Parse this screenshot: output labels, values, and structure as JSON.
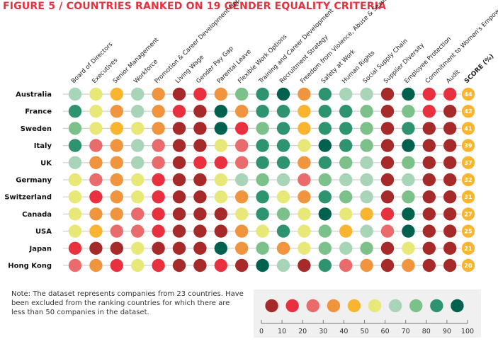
{
  "title": "FIGURE 5 / COUNTRIES RANKED ON 19 GENDER EQUALITY CRITERIA",
  "note": "Note: The dataset represents companies from 23 countries. Have been excluded from the ranking countries for which there are less than 50 companies in the dataset.",
  "colors": {
    "title": "#e8303f",
    "scale": [
      "#a62a2a",
      "#e8303f",
      "#ea6b6b",
      "#f0953d",
      "#f9b52f",
      "#e8e879",
      "#a8d4b7",
      "#7cc18a",
      "#2e936f",
      "#00614f"
    ]
  },
  "chart_data": {
    "type": "heatmap",
    "criteria": [
      "Board of Directors",
      "Executives",
      "Senior Management",
      "Workforce",
      "Promotion & Career Development Opportunities",
      "Living Wage",
      "Gender Pay Gap",
      "Parental Leave",
      "Flexible Work Options",
      "Training and Career Development",
      "Recruitment Strategy",
      "Freedom from Violence, Abuse & Sexual Harassment",
      "Safety at Work",
      "Human Rights",
      "Social Supply Chain",
      "Supplier Diversity",
      "Employee Protection",
      "Commitment to Women's Empowerment",
      "Audit"
    ],
    "score_label": "SCORE (%)",
    "countries": [
      {
        "name": "Australia",
        "score": "44",
        "values": [
          65,
          55,
          45,
          65,
          35,
          5,
          15,
          35,
          75,
          85,
          95,
          35,
          85,
          65,
          65,
          5,
          95,
          15,
          15
        ]
      },
      {
        "name": "France",
        "score": "42",
        "values": [
          85,
          55,
          35,
          65,
          35,
          15,
          5,
          95,
          35,
          85,
          85,
          45,
          85,
          85,
          75,
          5,
          75,
          15,
          5
        ]
      },
      {
        "name": "Sweden",
        "score": "41",
        "values": [
          75,
          55,
          45,
          55,
          35,
          5,
          5,
          95,
          15,
          75,
          85,
          45,
          85,
          85,
          75,
          5,
          85,
          5,
          5
        ]
      },
      {
        "name": "Italy",
        "score": "39",
        "values": [
          85,
          25,
          35,
          65,
          25,
          5,
          5,
          55,
          25,
          85,
          85,
          55,
          95,
          85,
          75,
          5,
          95,
          5,
          5
        ]
      },
      {
        "name": "UK",
        "score": "37",
        "values": [
          65,
          35,
          35,
          65,
          25,
          5,
          15,
          15,
          25,
          85,
          85,
          35,
          85,
          75,
          65,
          5,
          75,
          5,
          5
        ]
      },
      {
        "name": "Germany",
        "score": "32",
        "values": [
          55,
          25,
          35,
          55,
          15,
          5,
          5,
          55,
          65,
          75,
          65,
          25,
          75,
          65,
          65,
          5,
          65,
          5,
          5
        ]
      },
      {
        "name": "Switzerland",
        "score": "31",
        "values": [
          55,
          15,
          35,
          55,
          15,
          5,
          5,
          55,
          35,
          85,
          55,
          35,
          85,
          75,
          65,
          5,
          75,
          5,
          5
        ]
      },
      {
        "name": "Canada",
        "score": "27",
        "values": [
          55,
          35,
          35,
          25,
          15,
          5,
          5,
          5,
          55,
          85,
          75,
          55,
          95,
          55,
          45,
          15,
          95,
          5,
          5
        ]
      },
      {
        "name": "USA",
        "score": "25",
        "values": [
          55,
          45,
          25,
          25,
          15,
          5,
          5,
          5,
          35,
          55,
          85,
          55,
          75,
          45,
          65,
          25,
          95,
          5,
          5
        ]
      },
      {
        "name": "Japan",
        "score": "21",
        "values": [
          15,
          5,
          5,
          55,
          5,
          5,
          5,
          95,
          35,
          75,
          35,
          55,
          75,
          65,
          75,
          5,
          55,
          5,
          5
        ]
      },
      {
        "name": "Hong Kong",
        "score": "20",
        "values": [
          25,
          35,
          15,
          55,
          15,
          5,
          5,
          15,
          5,
          95,
          65,
          5,
          85,
          25,
          35,
          5,
          35,
          5,
          5
        ]
      }
    ],
    "legend": {
      "ticks": [
        "0",
        "10",
        "20",
        "30",
        "40",
        "50",
        "60",
        "70",
        "80",
        "90",
        "100"
      ],
      "swatch_values": [
        5,
        15,
        25,
        35,
        45,
        55,
        65,
        75,
        85,
        95
      ]
    }
  }
}
